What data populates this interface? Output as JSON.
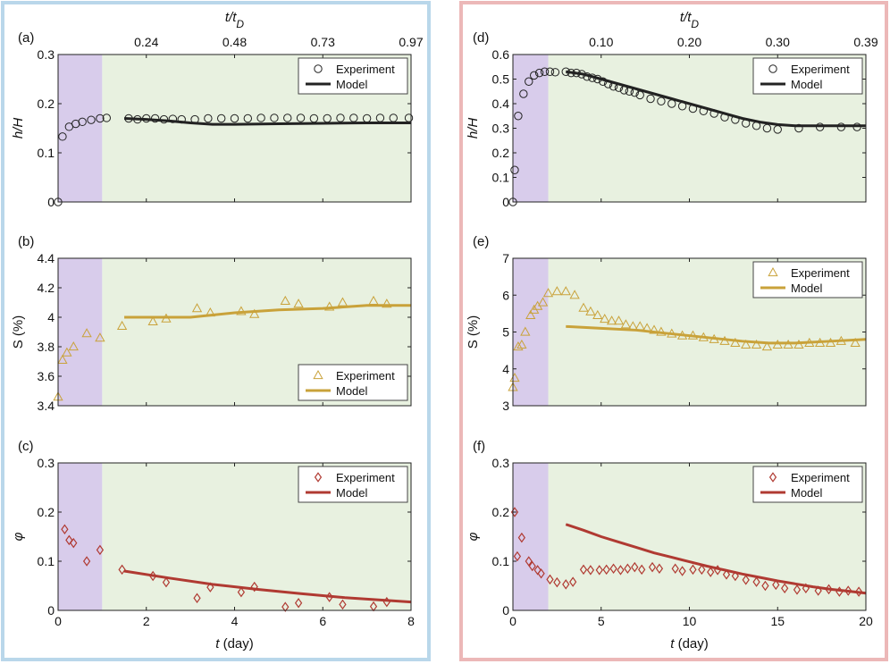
{
  "figure": {
    "left_frame_color": "#b9d7ea",
    "right_frame_color": "#ecb8b8",
    "purple_region_color": "#d8cceb",
    "green_region_color": "#e8f1e0",
    "left_column": {
      "top_axis_label": "t/t_D",
      "top_ticks": [
        "0.24",
        "0.48",
        "0.73",
        "0.97"
      ],
      "bottom_axis_label": "t (day)",
      "xlim": [
        0,
        8
      ],
      "purple_until": 1,
      "xticks": [
        0,
        2,
        4,
        6,
        8
      ]
    },
    "right_column": {
      "top_axis_label": "t/t_D",
      "top_ticks": [
        "0.10",
        "0.20",
        "0.30",
        "0.39"
      ],
      "bottom_axis_label": "t (day)",
      "xlim": [
        0,
        20
      ],
      "purple_until": 2,
      "xticks": [
        0,
        5,
        10,
        15,
        20
      ]
    }
  },
  "chart_data": [
    {
      "panel": "(a)",
      "type": "scatter+line",
      "ylabel": "h/H",
      "xlim": [
        0,
        8
      ],
      "ylim": [
        0,
        0.3
      ],
      "yticks": [
        "0",
        "0.1",
        "0.2",
        "0.3"
      ],
      "marker": "circle",
      "color": "#222222",
      "legend": [
        "Experiment",
        "Model"
      ],
      "legend_pos": "top-right",
      "experiment": {
        "x": [
          0,
          0.1,
          0.25,
          0.4,
          0.55,
          0.75,
          0.95,
          1.1,
          1.6,
          1.8,
          2.0,
          2.2,
          2.4,
          2.6,
          2.8,
          3.1,
          3.4,
          3.7,
          4.0,
          4.3,
          4.6,
          4.9,
          5.2,
          5.5,
          5.8,
          6.1,
          6.4,
          6.7,
          7.0,
          7.3,
          7.6,
          7.95
        ],
        "y": [
          0,
          0.133,
          0.153,
          0.159,
          0.163,
          0.167,
          0.17,
          0.171,
          0.17,
          0.168,
          0.17,
          0.17,
          0.168,
          0.169,
          0.168,
          0.168,
          0.17,
          0.17,
          0.17,
          0.17,
          0.171,
          0.171,
          0.171,
          0.171,
          0.17,
          0.17,
          0.171,
          0.171,
          0.17,
          0.171,
          0.171,
          0.171
        ]
      },
      "model": {
        "x": [
          1.5,
          2.0,
          2.5,
          3.0,
          3.5,
          4.0,
          5.0,
          6.0,
          7.0,
          8.0
        ],
        "y": [
          0.17,
          0.168,
          0.165,
          0.161,
          0.158,
          0.158,
          0.159,
          0.16,
          0.161,
          0.161
        ]
      }
    },
    {
      "panel": "(b)",
      "type": "scatter+line",
      "ylabel": "S (%)",
      "xlim": [
        0,
        8
      ],
      "ylim": [
        3.4,
        4.4
      ],
      "yticks": [
        "3.4",
        "3.6",
        "3.8",
        "4",
        "4.2",
        "4.4"
      ],
      "marker": "triangle",
      "color": "#c9a23a",
      "legend": [
        "Experiment",
        "Model"
      ],
      "legend_pos": "bottom-right",
      "experiment": {
        "x": [
          0,
          0.1,
          0.2,
          0.35,
          0.65,
          0.95,
          1.45,
          2.15,
          2.45,
          3.15,
          3.45,
          4.15,
          4.45,
          5.15,
          5.45,
          6.15,
          6.45,
          7.15,
          7.45
        ],
        "y": [
          3.46,
          3.71,
          3.76,
          3.8,
          3.89,
          3.86,
          3.94,
          3.97,
          3.99,
          4.06,
          4.03,
          4.04,
          4.02,
          4.11,
          4.09,
          4.07,
          4.1,
          4.11,
          4.09
        ]
      },
      "model": {
        "x": [
          1.5,
          3.0,
          4.0,
          5.0,
          6.0,
          7.0,
          8.0
        ],
        "y": [
          4.0,
          4.0,
          4.03,
          4.05,
          4.06,
          4.08,
          4.08
        ]
      }
    },
    {
      "panel": "(c)",
      "type": "scatter+line",
      "ylabel": "φ",
      "xlim": [
        0,
        8
      ],
      "ylim": [
        0,
        0.3
      ],
      "yticks": [
        "0",
        "0.1",
        "0.2",
        "0.3"
      ],
      "xlabel": "t (day)",
      "xticks": [
        "0",
        "2",
        "4",
        "6",
        "8"
      ],
      "marker": "diamond",
      "color": "#b03a32",
      "legend": [
        "Experiment",
        "Model"
      ],
      "legend_pos": "top-right",
      "experiment": {
        "x": [
          0.15,
          0.25,
          0.35,
          0.65,
          0.95,
          1.45,
          2.15,
          2.45,
          3.15,
          3.45,
          4.15,
          4.45,
          5.15,
          5.45,
          6.15,
          6.45,
          7.15,
          7.45
        ],
        "y": [
          0.165,
          0.143,
          0.137,
          0.1,
          0.123,
          0.083,
          0.07,
          0.057,
          0.025,
          0.047,
          0.037,
          0.048,
          0.007,
          0.015,
          0.027,
          0.012,
          0.008,
          0.017
        ]
      },
      "model": {
        "x": [
          1.5,
          2.5,
          3.5,
          4.5,
          5.5,
          6.5,
          7.5,
          8.0
        ],
        "y": [
          0.08,
          0.066,
          0.053,
          0.043,
          0.034,
          0.026,
          0.02,
          0.017
        ]
      }
    },
    {
      "panel": "(d)",
      "type": "scatter+line",
      "ylabel": "h/H",
      "xlim": [
        0,
        20
      ],
      "ylim": [
        0,
        0.6
      ],
      "yticks": [
        "0",
        "0.1",
        "0.2",
        "0.3",
        "0.4",
        "0.5",
        "0.6"
      ],
      "marker": "circle",
      "color": "#222222",
      "legend": [
        "Experiment",
        "Model"
      ],
      "legend_pos": "top-right",
      "experiment": {
        "x": [
          0,
          0.1,
          0.3,
          0.6,
          0.9,
          1.2,
          1.5,
          1.8,
          2.1,
          2.4,
          3.0,
          3.3,
          3.6,
          3.9,
          4.2,
          4.5,
          4.8,
          5.1,
          5.4,
          5.7,
          6.0,
          6.3,
          6.6,
          6.9,
          7.2,
          7.8,
          8.4,
          9.0,
          9.6,
          10.2,
          10.8,
          11.4,
          12.0,
          12.6,
          13.2,
          13.8,
          14.4,
          15.0,
          16.2,
          17.4,
          18.6,
          19.5
        ],
        "y": [
          0,
          0.13,
          0.35,
          0.44,
          0.49,
          0.515,
          0.525,
          0.53,
          0.53,
          0.528,
          0.53,
          0.525,
          0.525,
          0.52,
          0.51,
          0.505,
          0.5,
          0.49,
          0.48,
          0.47,
          0.465,
          0.455,
          0.45,
          0.445,
          0.435,
          0.42,
          0.41,
          0.4,
          0.39,
          0.38,
          0.37,
          0.36,
          0.345,
          0.335,
          0.32,
          0.31,
          0.3,
          0.295,
          0.3,
          0.305,
          0.305,
          0.305
        ]
      },
      "model": {
        "x": [
          3.0,
          4.0,
          5.0,
          6.0,
          7.0,
          8.0,
          9.0,
          10.0,
          11.0,
          12.0,
          13.0,
          14.0,
          15.0,
          16.0,
          17.0,
          18.0,
          19.0,
          20.0
        ],
        "y": [
          0.53,
          0.52,
          0.5,
          0.48,
          0.46,
          0.44,
          0.42,
          0.4,
          0.38,
          0.36,
          0.34,
          0.325,
          0.315,
          0.31,
          0.31,
          0.31,
          0.31,
          0.31
        ]
      }
    },
    {
      "panel": "(e)",
      "type": "scatter+line",
      "ylabel": "S (%)",
      "xlim": [
        0,
        20
      ],
      "ylim": [
        3,
        7
      ],
      "yticks": [
        "3",
        "4",
        "5",
        "6",
        "7"
      ],
      "marker": "triangle",
      "color": "#c9a23a",
      "legend": [
        "Experiment",
        "Model"
      ],
      "legend_pos": "top-right",
      "experiment": {
        "x": [
          0,
          0.1,
          0.3,
          0.5,
          0.7,
          1.0,
          1.2,
          1.4,
          1.7,
          2.0,
          2.5,
          3.0,
          3.5,
          4.0,
          4.4,
          4.8,
          5.2,
          5.6,
          6.0,
          6.4,
          6.8,
          7.2,
          7.6,
          8.0,
          8.4,
          9.0,
          9.6,
          10.2,
          10.8,
          11.4,
          12.0,
          12.6,
          13.2,
          13.8,
          14.4,
          15.0,
          15.6,
          16.2,
          16.8,
          17.4,
          18.0,
          18.6,
          19.4
        ],
        "y": [
          3.5,
          3.75,
          4.6,
          4.65,
          5.0,
          5.45,
          5.6,
          5.7,
          5.8,
          6.05,
          6.1,
          6.1,
          6.0,
          5.65,
          5.55,
          5.45,
          5.35,
          5.3,
          5.3,
          5.2,
          5.15,
          5.15,
          5.1,
          5.05,
          5.0,
          4.95,
          4.9,
          4.9,
          4.85,
          4.8,
          4.75,
          4.7,
          4.65,
          4.65,
          4.6,
          4.65,
          4.65,
          4.65,
          4.7,
          4.7,
          4.7,
          4.75,
          4.7
        ]
      },
      "model": {
        "x": [
          3.0,
          5.0,
          7.0,
          9.0,
          11.0,
          13.0,
          14.5,
          16.0,
          18.0,
          20.0
        ],
        "y": [
          5.15,
          5.1,
          5.05,
          4.95,
          4.85,
          4.75,
          4.7,
          4.7,
          4.75,
          4.8
        ]
      }
    },
    {
      "panel": "(f)",
      "type": "scatter+line",
      "ylabel": "φ",
      "xlim": [
        0,
        20
      ],
      "ylim": [
        0,
        0.3
      ],
      "yticks": [
        "0",
        "0.1",
        "0.2",
        "0.3"
      ],
      "xlabel": "t (day)",
      "xticks": [
        "0",
        "5",
        "10",
        "15",
        "20"
      ],
      "marker": "diamond",
      "color": "#b03a32",
      "legend": [
        "Experiment",
        "Model"
      ],
      "legend_pos": "top-right",
      "experiment": {
        "x": [
          0.1,
          0.25,
          0.5,
          0.9,
          1.1,
          1.4,
          1.6,
          2.1,
          2.5,
          3.0,
          3.4,
          4.0,
          4.4,
          4.9,
          5.3,
          5.7,
          6.1,
          6.5,
          6.9,
          7.3,
          7.9,
          8.3,
          9.2,
          9.6,
          10.2,
          10.7,
          11.2,
          11.6,
          12.1,
          12.6,
          13.2,
          13.8,
          14.3,
          14.9,
          15.4,
          16.1,
          16.6,
          17.3,
          17.9,
          18.5,
          19.0,
          19.6
        ],
        "y": [
          0.2,
          0.11,
          0.148,
          0.1,
          0.09,
          0.082,
          0.075,
          0.063,
          0.057,
          0.053,
          0.058,
          0.083,
          0.082,
          0.082,
          0.083,
          0.085,
          0.082,
          0.085,
          0.088,
          0.083,
          0.088,
          0.085,
          0.085,
          0.08,
          0.083,
          0.083,
          0.078,
          0.082,
          0.073,
          0.07,
          0.062,
          0.058,
          0.05,
          0.052,
          0.045,
          0.042,
          0.045,
          0.04,
          0.043,
          0.038,
          0.04,
          0.038
        ]
      },
      "model": {
        "x": [
          3.0,
          4.0,
          5.0,
          6.0,
          7.0,
          8.0,
          9.0,
          10.0,
          11.0,
          12.0,
          13.0,
          14.0,
          15.0,
          16.0,
          17.0,
          18.0,
          19.0,
          20.0
        ],
        "y": [
          0.175,
          0.163,
          0.15,
          0.139,
          0.128,
          0.117,
          0.108,
          0.099,
          0.09,
          0.082,
          0.074,
          0.067,
          0.06,
          0.054,
          0.048,
          0.043,
          0.039,
          0.035
        ]
      }
    }
  ]
}
